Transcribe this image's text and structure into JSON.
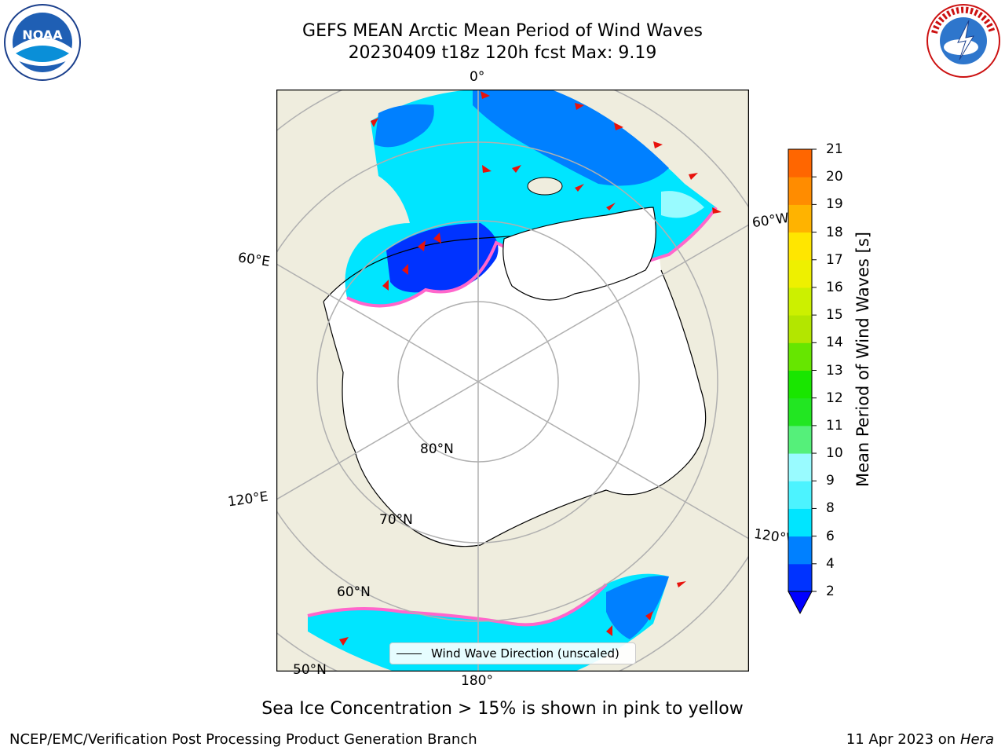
{
  "title": {
    "line1": "GEFS MEAN Arctic Mean Period of Wind Waves",
    "line2": "20230409 t18z 120h fcst   Max: 9.19"
  },
  "logos": {
    "left": "noara-logo",
    "right": "national-weather-service-logo"
  },
  "map": {
    "longitude_labels": [
      "0°",
      "60°E",
      "120°E",
      "180°",
      "120°W",
      "60°W"
    ],
    "latitude_labels": [
      "80°N",
      "70°N",
      "60°N",
      "50°N"
    ],
    "legend_label": "Wind Wave Direction (unscaled)",
    "colors": {
      "land": "#efedde",
      "ocean_no_data": "#ffffff",
      "grid": "#b0b0b0",
      "arrow": "#e8120c"
    }
  },
  "colorbar": {
    "title": "Mean Period of Wind Waves [s]",
    "ticks": [
      "2",
      "4",
      "6",
      "8",
      "9",
      "10",
      "11",
      "12",
      "13",
      "14",
      "15",
      "16",
      "17",
      "18",
      "19",
      "20",
      "21"
    ],
    "colors": [
      "#0033ff",
      "#0080ff",
      "#00e5ff",
      "#4cf3ff",
      "#99fbff",
      "#55f07a",
      "#22e622",
      "#19e600",
      "#66e600",
      "#b3e600",
      "#ccf000",
      "#eef000",
      "#ffe600",
      "#ffb300",
      "#ff8c00",
      "#ff6600",
      "#ff3300",
      "#ff0000"
    ],
    "under_color": "#0000ff"
  },
  "note": "Sea Ice Concentration > 15% is shown in pink to yellow",
  "footer": {
    "left": "NCEP/EMC/Verification Post Processing Product Generation Branch",
    "date": "11 Apr 2023 on ",
    "machine": "Hera"
  }
}
